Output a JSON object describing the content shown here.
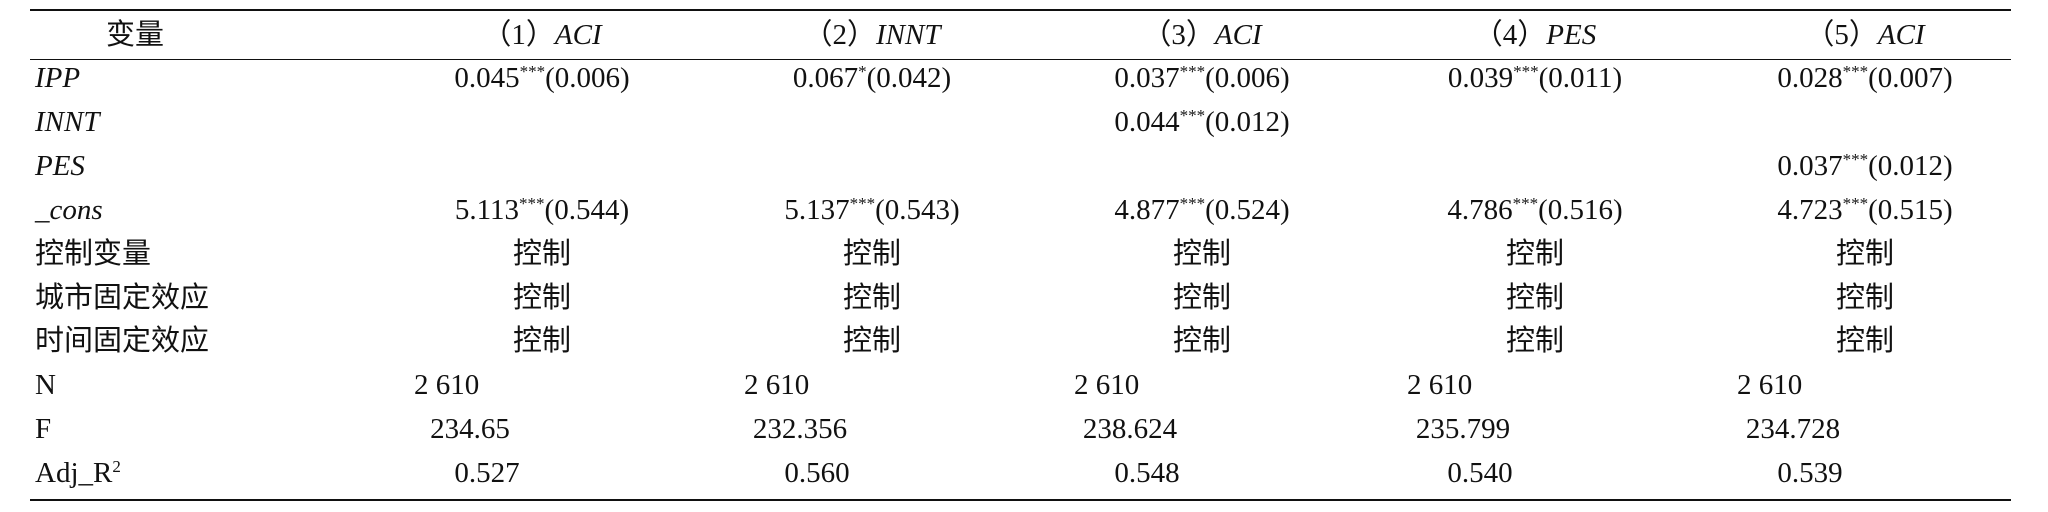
{
  "table": {
    "header": [
      "变量",
      {
        "num": "（1）",
        "var": "ACI"
      },
      {
        "num": "（2）",
        "var": "INNT"
      },
      {
        "num": "（3）",
        "var": "ACI"
      },
      {
        "num": "（4）",
        "var": "PES"
      },
      {
        "num": "（5）",
        "var": "ACI"
      }
    ],
    "rows": [
      {
        "label": "IPP",
        "cells": [
          {
            "coef": "0.045",
            "stars": "***",
            "se": "(0.006)"
          },
          {
            "coef": "0.067",
            "stars": "*",
            "se": "(0.042)"
          },
          {
            "coef": "0.037",
            "stars": "***",
            "se": "(0.006)"
          },
          {
            "coef": "0.039",
            "stars": "***",
            "se": "(0.011)"
          },
          {
            "coef": "0.028",
            "stars": "***",
            "se": "(0.007)"
          }
        ]
      },
      {
        "label": "INNT",
        "cells": [
          null,
          null,
          {
            "coef": "0.044",
            "stars": "***",
            "se": "(0.012)"
          },
          null,
          null
        ]
      },
      {
        "label": "PES",
        "cells": [
          null,
          null,
          null,
          null,
          {
            "coef": "0.037",
            "stars": "***",
            "se": "(0.012)"
          }
        ]
      },
      {
        "label": "_cons",
        "cells": [
          {
            "coef": "5.113",
            "stars": "***",
            "se": "(0.544)"
          },
          {
            "coef": "5.137",
            "stars": "***",
            "se": "(0.543)"
          },
          {
            "coef": "4.877",
            "stars": "***",
            "se": "(0.524)"
          },
          {
            "coef": "4.786",
            "stars": "***",
            "se": "(0.516)"
          },
          {
            "coef": "4.723",
            "stars": "***",
            "se": "(0.515)"
          }
        ]
      },
      {
        "label": "控制变量",
        "cells": [
          "控制",
          "控制",
          "控制",
          "控制",
          "控制"
        ]
      },
      {
        "label": "城市固定效应",
        "cells": [
          "控制",
          "控制",
          "控制",
          "控制",
          "控制"
        ]
      },
      {
        "label": "时间固定效应",
        "cells": [
          "控制",
          "控制",
          "控制",
          "控制",
          "控制"
        ]
      },
      {
        "label": "N",
        "cells": [
          "2 610",
          "2 610",
          "2 610",
          "2 610",
          "2 610"
        ]
      },
      {
        "label": "F",
        "cells": [
          "234.65",
          "232.356",
          "238.624",
          "235.799",
          "234.728"
        ]
      },
      {
        "label": {
          "text": "Adj_R",
          "sup": "2"
        },
        "cells": [
          "0.527",
          "0.560",
          "0.548",
          "0.540",
          "0.539"
        ]
      }
    ]
  }
}
